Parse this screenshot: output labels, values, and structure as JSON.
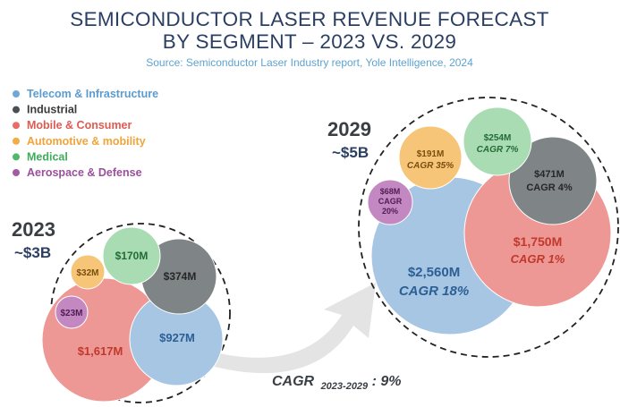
{
  "title_line1": "SEMICONDUCTOR LASER REVENUE FORECAST",
  "title_line2": "BY SEGMENT – 2023 VS. 2029",
  "source": "Source: Semiconductor Laser Industry report, Yole Intelligence, 2024",
  "colors": {
    "title": "#2b3f63",
    "source": "#5fa3cf",
    "telecom": "#a7c6e4",
    "industrial": "#7f8587",
    "mobile": "#ee9896",
    "automotive": "#f6c577",
    "medical": "#a9dcb3",
    "aerospace": "#c387c2"
  },
  "chart_data": {
    "type": "bubble",
    "title": "SEMICONDUCTOR LASER REVENUE FORECAST BY SEGMENT – 2023 VS. 2029",
    "legend": [
      {
        "key": "telecom",
        "label": "Telecom & Infrastructure",
        "color": "#5b9bd0",
        "dot": "#6fa8d8"
      },
      {
        "key": "industrial",
        "label": "Industrial",
        "color": "#3a3a3a",
        "dot": "#4a4f53"
      },
      {
        "key": "mobile",
        "label": "Mobile & Consumer",
        "color": "#e05a52",
        "dot": "#e86b65"
      },
      {
        "key": "automotive",
        "label": "Automotive & mobility",
        "color": "#f0a43a",
        "dot": "#f3ad46"
      },
      {
        "key": "medical",
        "label": "Medical",
        "color": "#3fae5c",
        "dot": "#4fb86a"
      },
      {
        "key": "aerospace",
        "label": "Aerospace & Defense",
        "color": "#9a4f9c",
        "dot": "#a35aa5"
      }
    ],
    "years": [
      {
        "year": "2023",
        "total_label": "~$3B",
        "segments": [
          {
            "key": "mobile",
            "value": 1617,
            "label": "$1,617M"
          },
          {
            "key": "telecom",
            "value": 927,
            "label": "$927M"
          },
          {
            "key": "industrial",
            "value": 374,
            "label": "$374M"
          },
          {
            "key": "medical",
            "value": 170,
            "label": "$170M"
          },
          {
            "key": "automotive",
            "value": 32,
            "label": "$32M"
          },
          {
            "key": "aerospace",
            "value": 23,
            "label": "$23M"
          }
        ]
      },
      {
        "year": "2029",
        "total_label": "~$5B",
        "segments": [
          {
            "key": "telecom",
            "value": 2560,
            "label": "$2,560M",
            "cagr": "CAGR 18%"
          },
          {
            "key": "mobile",
            "value": 1750,
            "label": "$1,750M",
            "cagr": "CAGR 1%"
          },
          {
            "key": "industrial",
            "value": 471,
            "label": "$471M",
            "cagr": "CAGR 4%"
          },
          {
            "key": "medical",
            "value": 254,
            "label": "$254M",
            "cagr": "CAGR 7%"
          },
          {
            "key": "automotive",
            "value": 191,
            "label": "$191M",
            "cagr": "CAGR 35%"
          },
          {
            "key": "aerospace",
            "value": 68,
            "label": "$68M",
            "cagr_line1": "CAGR",
            "cagr_line2": "20%"
          }
        ]
      }
    ],
    "overall_cagr": {
      "label": "CAGR",
      "period": "2023-2029",
      "value": ": 9%"
    }
  }
}
